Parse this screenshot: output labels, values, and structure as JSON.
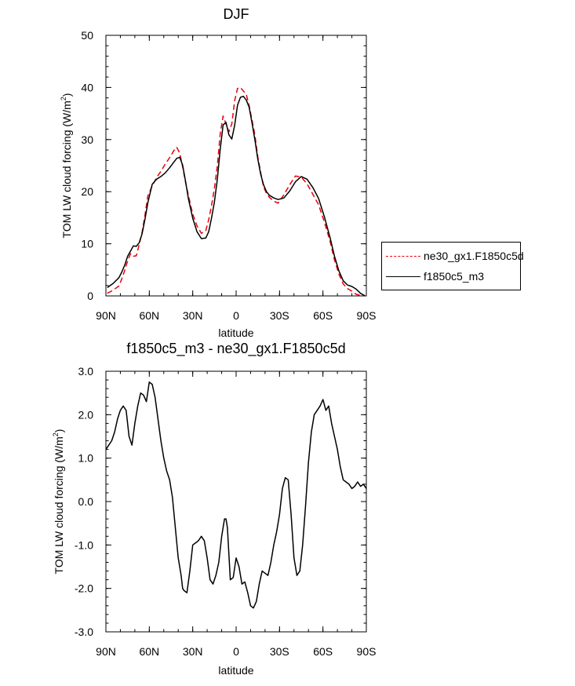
{
  "chart_data": [
    {
      "type": "line",
      "title": "DJF",
      "xlabel": "latitude",
      "ylabel_main": "TOM LW cloud forcing (W/m",
      "ylabel_sup": "2",
      "ylabel_tail": ")",
      "xlim": [
        -90,
        90
      ],
      "ylim": [
        0,
        50
      ],
      "xticks": [
        -90,
        -60,
        -30,
        0,
        30,
        60,
        90
      ],
      "xtick_labels": [
        "90N",
        "60N",
        "30N",
        "0",
        "30S",
        "60S",
        "90S"
      ],
      "yticks": [
        0,
        10,
        20,
        30,
        40,
        50
      ],
      "ytick_labels": [
        "0",
        "10",
        "20",
        "30",
        "40",
        "50"
      ],
      "legend_position": "right",
      "series": [
        {
          "name": "ne30_gx1.F1850c5d",
          "color": "#e8000b",
          "dash": "dashed",
          "x": [
            -89,
            -85,
            -81,
            -79,
            -77,
            -75,
            -73,
            -71,
            -69,
            -67,
            -65,
            -63,
            -61,
            -58,
            -55,
            -52,
            -49,
            -46,
            -43,
            -41,
            -39,
            -37,
            -35,
            -33,
            -30,
            -27,
            -24,
            -21,
            -19,
            -17,
            -15,
            -13,
            -11,
            -9,
            -7,
            -5,
            -3,
            -1,
            1,
            3,
            5,
            7,
            9,
            11,
            13,
            15,
            17,
            19,
            21,
            23,
            26,
            29,
            33,
            37,
            41,
            45,
            49,
            53,
            57,
            61,
            65,
            68,
            71,
            74,
            77,
            80,
            83,
            86,
            89
          ],
          "y": [
            0.5,
            1.1,
            1.9,
            3.3,
            4.9,
            6.7,
            8.1,
            7.6,
            7.7,
            9.8,
            12.2,
            15.5,
            19.2,
            21.1,
            22.7,
            23.9,
            25.3,
            26.5,
            27.9,
            28.5,
            27.4,
            24.8,
            21.9,
            19.3,
            15.7,
            13.4,
            12.0,
            12.5,
            14.6,
            17.3,
            20.6,
            24.9,
            31.1,
            34.5,
            33.0,
            31.5,
            33.0,
            37.5,
            39.8,
            40.0,
            39.3,
            38.7,
            36.5,
            33.7,
            30.8,
            26.6,
            23.6,
            20.9,
            19.7,
            18.9,
            18.2,
            17.8,
            19.4,
            21.3,
            23.0,
            22.8,
            21.5,
            19.5,
            17.5,
            14.2,
            10.4,
            6.9,
            4.2,
            2.3,
            1.4,
            0.9,
            0.3,
            0.1,
            0.1
          ]
        },
        {
          "name": "f1850c5_m3",
          "color": "#000000",
          "dash": "solid",
          "x": [
            -89,
            -85,
            -81,
            -79,
            -77,
            -75,
            -73,
            -71,
            -69,
            -67,
            -65,
            -63,
            -61,
            -58,
            -55,
            -52,
            -49,
            -46,
            -43,
            -41,
            -39,
            -37,
            -35,
            -33,
            -30,
            -27,
            -24,
            -21,
            -19,
            -17,
            -15,
            -13,
            -11,
            -9,
            -7,
            -5,
            -3,
            -1,
            1,
            3,
            5,
            7,
            9,
            11,
            13,
            15,
            17,
            19,
            21,
            23,
            26,
            29,
            33,
            37,
            41,
            45,
            49,
            53,
            57,
            61,
            65,
            68,
            71,
            74,
            77,
            80,
            83,
            86,
            89
          ],
          "y": [
            1.6,
            2.4,
            3.5,
            4.6,
            5.9,
            7.6,
            8.6,
            9.6,
            9.5,
            10.2,
            11.9,
            14.7,
            17.9,
            21.4,
            22.4,
            22.9,
            23.6,
            24.6,
            25.7,
            26.4,
            26.6,
            25.1,
            22.1,
            18.7,
            14.9,
            12.3,
            11.0,
            11.1,
            12.3,
            14.9,
            18.0,
            22.3,
            28.1,
            32.8,
            33.3,
            30.9,
            30.1,
            32.8,
            36.6,
            38.1,
            38.3,
            37.6,
            36.2,
            33.2,
            29.9,
            26.2,
            23.3,
            21.3,
            20.0,
            19.3,
            18.8,
            18.5,
            18.8,
            20.1,
            21.9,
            22.9,
            22.4,
            20.8,
            18.7,
            15.2,
            11.1,
            7.6,
            4.8,
            2.9,
            2.1,
            1.8,
            1.3,
            0.5,
            0.0
          ]
        }
      ]
    },
    {
      "type": "line",
      "title": "f1850c5_m3 - ne30_gx1.F1850c5d",
      "xlabel": "latitude",
      "ylabel_main": "TOM LW cloud forcing (W/m",
      "ylabel_sup": "2",
      "ylabel_tail": ")",
      "xlim": [
        -90,
        90
      ],
      "ylim": [
        -3,
        3
      ],
      "xticks": [
        -90,
        -60,
        -30,
        0,
        30,
        60,
        90
      ],
      "xtick_labels": [
        "90N",
        "60N",
        "30N",
        "0",
        "30S",
        "60S",
        "90S"
      ],
      "yticks": [
        -3,
        -2,
        -1,
        0,
        1,
        2,
        3
      ],
      "ytick_labels": [
        "-3.0",
        "-2.0",
        "-1.0",
        "0.0",
        "1.0",
        "2.0",
        "3.0"
      ],
      "series": [
        {
          "name": "f1850c5_m3 - ne30_gx1.F1850c5d",
          "color": "#000000",
          "dash": "solid",
          "x": [
            -90,
            -88,
            -86,
            -84,
            -82,
            -80,
            -78,
            -76,
            -74,
            -72,
            -70,
            -68,
            -66,
            -64,
            -62,
            -60,
            -58,
            -56,
            -54,
            -52,
            -50,
            -48,
            -46,
            -44,
            -42,
            -40,
            -38,
            -37,
            -36,
            -34,
            -32,
            -30,
            -28,
            -26,
            -24,
            -22,
            -20,
            -18,
            -16,
            -14,
            -12,
            -10,
            -8,
            -7,
            -6,
            -4,
            -2,
            0,
            2,
            4,
            6,
            8,
            10,
            12,
            14,
            16,
            18,
            20,
            22,
            24,
            26,
            28,
            30,
            32,
            34,
            36,
            38,
            40,
            42,
            44,
            46,
            48,
            50,
            52,
            54,
            56,
            58,
            60,
            62,
            64,
            66,
            68,
            70,
            72,
            74,
            76,
            78,
            80,
            82,
            84,
            86,
            88,
            90
          ],
          "y": [
            1.2,
            1.3,
            1.4,
            1.6,
            1.9,
            2.1,
            2.2,
            2.1,
            1.5,
            1.3,
            1.8,
            2.2,
            2.5,
            2.45,
            2.3,
            2.75,
            2.7,
            2.4,
            1.9,
            1.4,
            1.0,
            0.7,
            0.5,
            0.1,
            -0.6,
            -1.3,
            -1.7,
            -2.0,
            -2.05,
            -2.1,
            -1.6,
            -1.0,
            -0.95,
            -0.9,
            -0.8,
            -0.9,
            -1.3,
            -1.8,
            -1.9,
            -1.7,
            -1.4,
            -0.8,
            -0.4,
            -0.4,
            -0.6,
            -1.8,
            -1.75,
            -1.3,
            -1.5,
            -1.9,
            -1.85,
            -2.1,
            -2.4,
            -2.45,
            -2.3,
            -1.9,
            -1.6,
            -1.65,
            -1.7,
            -1.4,
            -1.0,
            -0.7,
            -0.3,
            0.3,
            0.55,
            0.5,
            -0.3,
            -1.3,
            -1.7,
            -1.6,
            -1.0,
            -0.1,
            0.9,
            1.6,
            2.0,
            2.1,
            2.2,
            2.35,
            2.1,
            2.2,
            1.8,
            1.5,
            1.2,
            0.8,
            0.5,
            0.45,
            0.4,
            0.3,
            0.35,
            0.45,
            0.35,
            0.4,
            0.3
          ]
        }
      ]
    }
  ]
}
